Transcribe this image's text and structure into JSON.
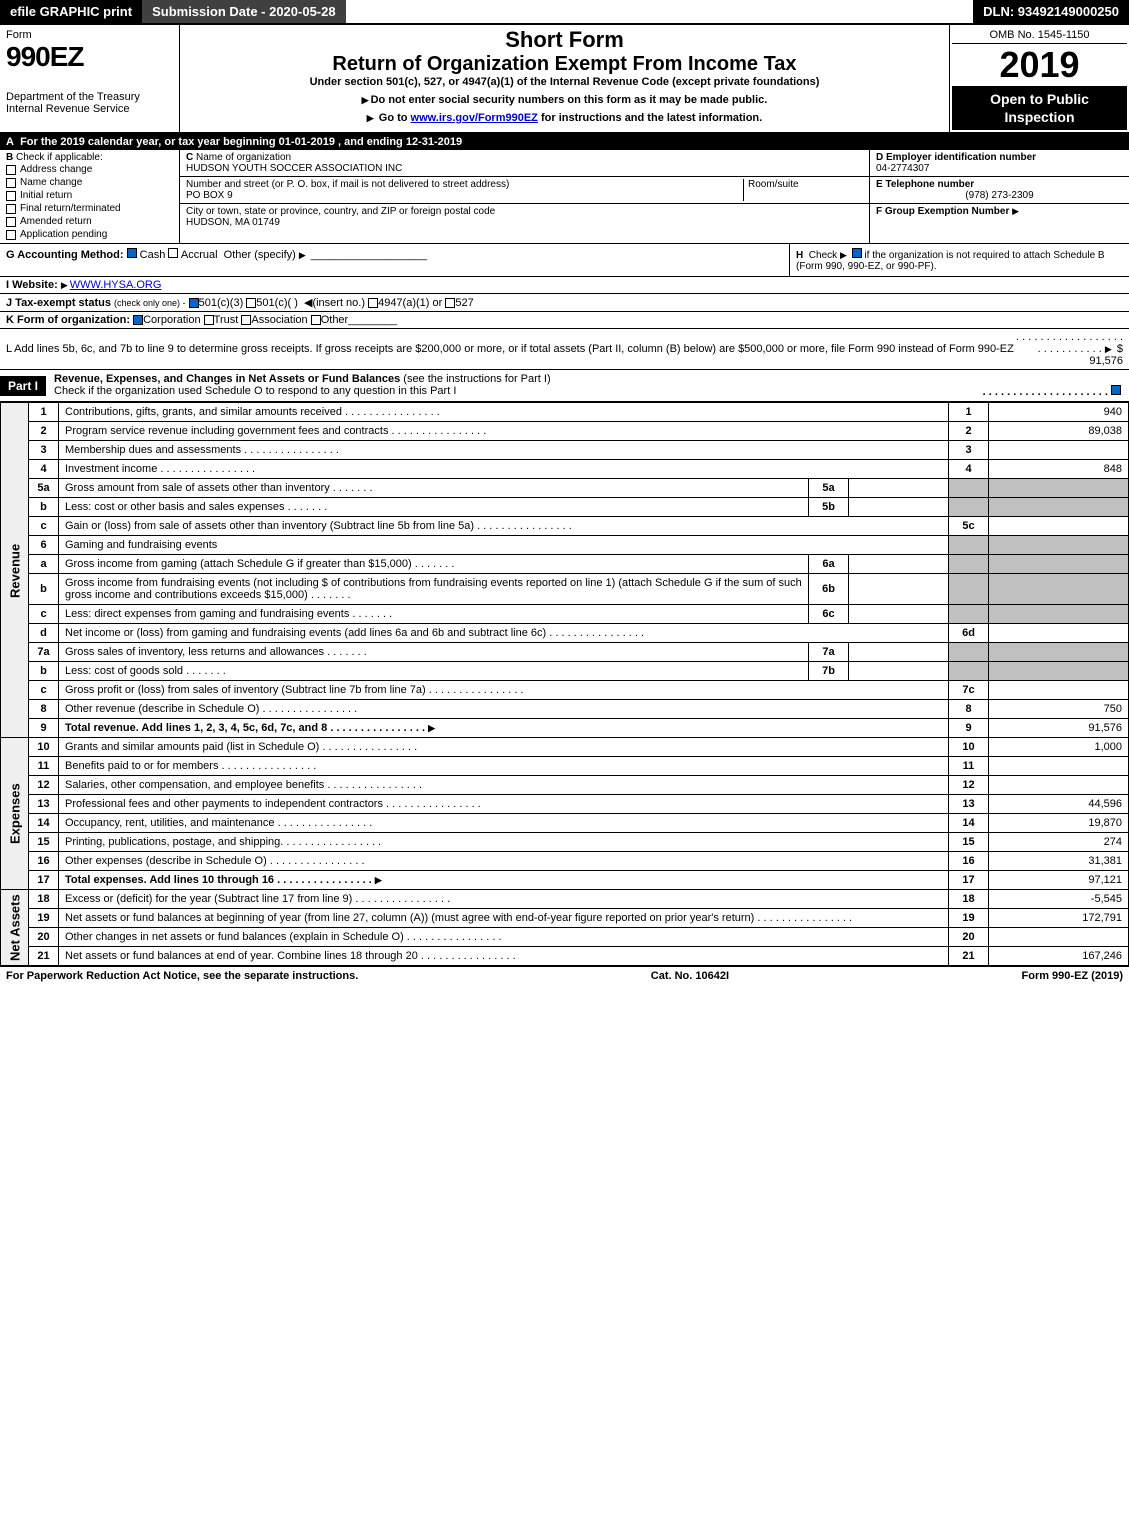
{
  "topbar": {
    "efile": "efile GRAPHIC print",
    "submission": "Submission Date - 2020-05-28",
    "dln": "DLN: 93492149000250"
  },
  "header": {
    "form_word": "Form",
    "form_number": "990EZ",
    "dept": "Department of the Treasury",
    "irs": "Internal Revenue Service",
    "short_form": "Short Form",
    "title": "Return of Organization Exempt From Income Tax",
    "subtitle": "Under section 501(c), 527, or 4947(a)(1) of the Internal Revenue Code (except private foundations)",
    "note1": "Do not enter social security numbers on this form as it may be made public.",
    "note2_pre": "Go to ",
    "note2_link": "www.irs.gov/Form990EZ",
    "note2_post": " for instructions and the latest information.",
    "omb": "OMB No. 1545-1150",
    "year": "2019",
    "open": "Open to Public Inspection"
  },
  "row_a": "For the 2019 calendar year, or tax year beginning 01-01-2019 , and ending 12-31-2019",
  "section_b": {
    "title": "Check if applicable:",
    "items": [
      "Address change",
      "Name change",
      "Initial return",
      "Final return/terminated",
      "Amended return",
      "Application pending"
    ]
  },
  "section_c": {
    "name_label": "Name of organization",
    "name": "HUDSON YOUTH SOCCER ASSOCIATION INC",
    "street_label": "Number and street (or P. O. box, if mail is not delivered to street address)",
    "room_label": "Room/suite",
    "street": "PO BOX 9",
    "city_label": "City or town, state or province, country, and ZIP or foreign postal code",
    "city": "HUDSON, MA  01749"
  },
  "section_d": {
    "ein_label": "D Employer identification number",
    "ein": "04-2774307",
    "phone_label": "E Telephone number",
    "phone": "(978) 273-2309",
    "group_label": "F Group Exemption Number"
  },
  "line_g": {
    "label": "G Accounting Method:",
    "opts": [
      "Cash",
      "Accrual",
      "Other (specify)"
    ]
  },
  "line_h": {
    "text1": "Check",
    "text2": "if the organization is not required to attach Schedule B (Form 990, 990-EZ, or 990-PF)."
  },
  "line_i": {
    "label": "I Website:",
    "value": "WWW.HYSA.ORG"
  },
  "line_j": {
    "label": "J Tax-exempt status",
    "note": "(check only one) -",
    "opts": [
      "501(c)(3)",
      "501(c)( )",
      "(insert no.)",
      "4947(a)(1) or",
      "527"
    ]
  },
  "line_k": {
    "label": "K Form of organization:",
    "opts": [
      "Corporation",
      "Trust",
      "Association",
      "Other"
    ]
  },
  "line_l": {
    "text": "L Add lines 5b, 6c, and 7b to line 9 to determine gross receipts. If gross receipts are $200,000 or more, or if total assets (Part II, column (B) below) are $500,000 or more, file Form 990 instead of Form 990-EZ",
    "amount": "$ 91,576"
  },
  "part1": {
    "label": "Part I",
    "title": "Revenue, Expenses, and Changes in Net Assets or Fund Balances",
    "note": "(see the instructions for Part I)",
    "check_note": "Check if the organization used Schedule O to respond to any question in this Part I"
  },
  "sections": {
    "revenue_label": "Revenue",
    "expenses_label": "Expenses",
    "netassets_label": "Net Assets"
  },
  "rows": [
    {
      "n": "1",
      "d": "Contributions, gifts, grants, and similar amounts received",
      "rn": "1",
      "v": "940"
    },
    {
      "n": "2",
      "d": "Program service revenue including government fees and contracts",
      "rn": "2",
      "v": "89,038"
    },
    {
      "n": "3",
      "d": "Membership dues and assessments",
      "rn": "3",
      "v": ""
    },
    {
      "n": "4",
      "d": "Investment income",
      "rn": "4",
      "v": "848"
    },
    {
      "n": "5a",
      "d": "Gross amount from sale of assets other than inventory",
      "sub": "5a"
    },
    {
      "n": "b",
      "d": "Less: cost or other basis and sales expenses",
      "sub": "5b"
    },
    {
      "n": "c",
      "d": "Gain or (loss) from sale of assets other than inventory (Subtract line 5b from line 5a)",
      "rn": "5c",
      "v": ""
    },
    {
      "n": "6",
      "d": "Gaming and fundraising events"
    },
    {
      "n": "a",
      "d": "Gross income from gaming (attach Schedule G if greater than $15,000)",
      "sub": "6a"
    },
    {
      "n": "b",
      "d": "Gross income from fundraising events (not including $                    of contributions from fundraising events reported on line 1) (attach Schedule G if the sum of such gross income and contributions exceeds $15,000)",
      "sub": "6b"
    },
    {
      "n": "c",
      "d": "Less: direct expenses from gaming and fundraising events",
      "sub": "6c"
    },
    {
      "n": "d",
      "d": "Net income or (loss) from gaming and fundraising events (add lines 6a and 6b and subtract line 6c)",
      "rn": "6d",
      "v": ""
    },
    {
      "n": "7a",
      "d": "Gross sales of inventory, less returns and allowances",
      "sub": "7a"
    },
    {
      "n": "b",
      "d": "Less: cost of goods sold",
      "sub": "7b"
    },
    {
      "n": "c",
      "d": "Gross profit or (loss) from sales of inventory (Subtract line 7b from line 7a)",
      "rn": "7c",
      "v": ""
    },
    {
      "n": "8",
      "d": "Other revenue (describe in Schedule O)",
      "rn": "8",
      "v": "750"
    },
    {
      "n": "9",
      "d": "Total revenue. Add lines 1, 2, 3, 4, 5c, 6d, 7c, and 8",
      "rn": "9",
      "v": "91,576",
      "bold": true,
      "arrow": true
    }
  ],
  "exp_rows": [
    {
      "n": "10",
      "d": "Grants and similar amounts paid (list in Schedule O)",
      "rn": "10",
      "v": "1,000"
    },
    {
      "n": "11",
      "d": "Benefits paid to or for members",
      "rn": "11",
      "v": ""
    },
    {
      "n": "12",
      "d": "Salaries, other compensation, and employee benefits",
      "rn": "12",
      "v": ""
    },
    {
      "n": "13",
      "d": "Professional fees and other payments to independent contractors",
      "rn": "13",
      "v": "44,596"
    },
    {
      "n": "14",
      "d": "Occupancy, rent, utilities, and maintenance",
      "rn": "14",
      "v": "19,870"
    },
    {
      "n": "15",
      "d": "Printing, publications, postage, and shipping.",
      "rn": "15",
      "v": "274"
    },
    {
      "n": "16",
      "d": "Other expenses (describe in Schedule O)",
      "rn": "16",
      "v": "31,381"
    },
    {
      "n": "17",
      "d": "Total expenses. Add lines 10 through 16",
      "rn": "17",
      "v": "97,121",
      "bold": true,
      "arrow": true
    }
  ],
  "na_rows": [
    {
      "n": "18",
      "d": "Excess or (deficit) for the year (Subtract line 17 from line 9)",
      "rn": "18",
      "v": "-5,545"
    },
    {
      "n": "19",
      "d": "Net assets or fund balances at beginning of year (from line 27, column (A)) (must agree with end-of-year figure reported on prior year's return)",
      "rn": "19",
      "v": "172,791"
    },
    {
      "n": "20",
      "d": "Other changes in net assets or fund balances (explain in Schedule O)",
      "rn": "20",
      "v": ""
    },
    {
      "n": "21",
      "d": "Net assets or fund balances at end of year. Combine lines 18 through 20",
      "rn": "21",
      "v": "167,246"
    }
  ],
  "footer": {
    "left": "For Paperwork Reduction Act Notice, see the separate instructions.",
    "mid": "Cat. No. 10642I",
    "right": "Form 990-EZ (2019)"
  }
}
